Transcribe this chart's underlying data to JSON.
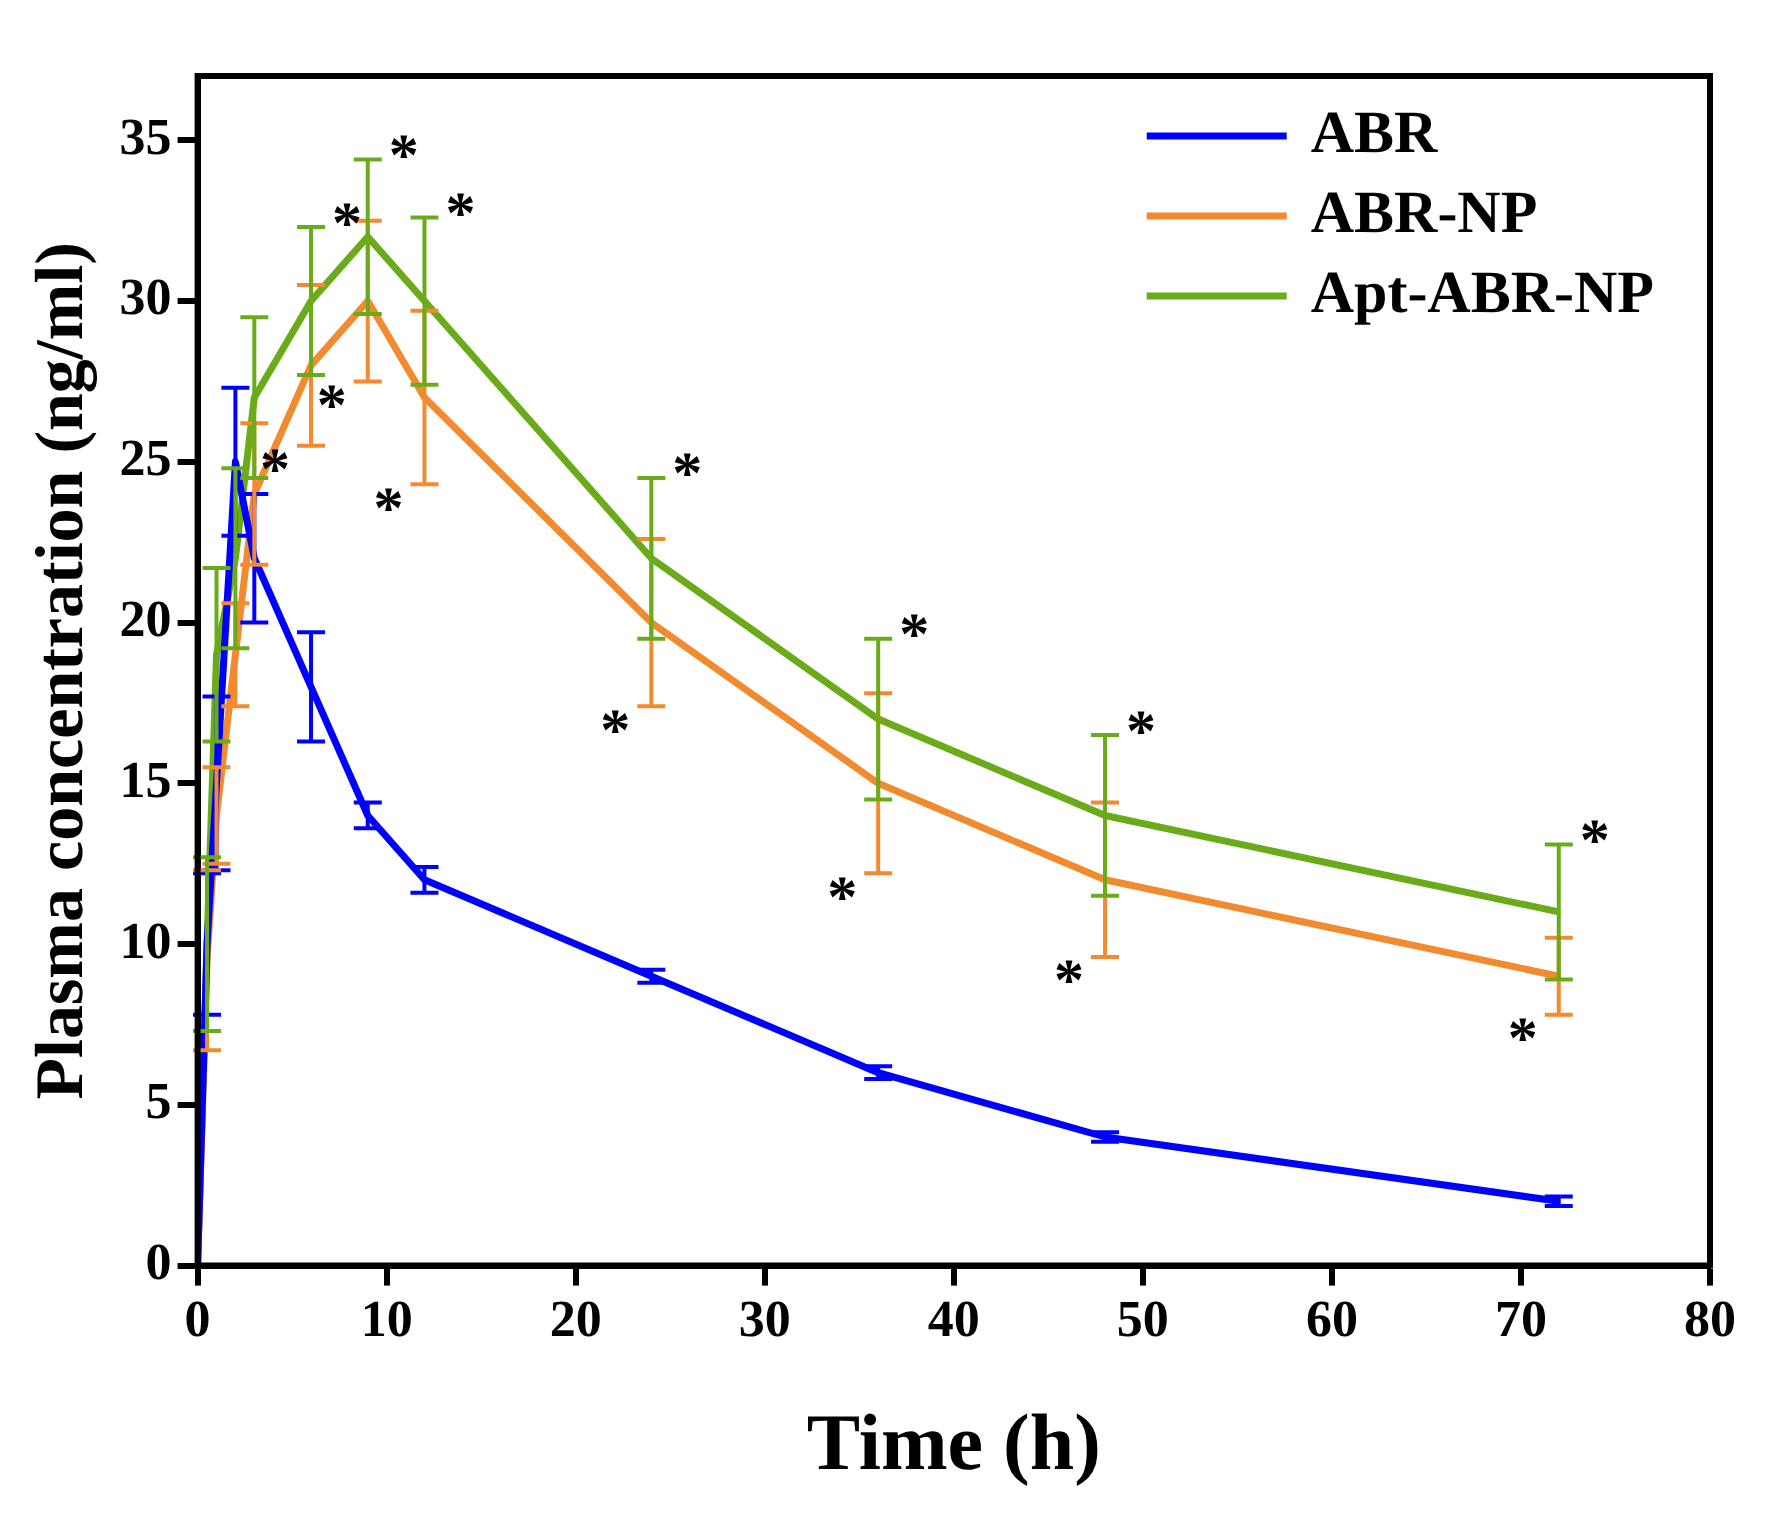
{
  "chart_data": {
    "type": "line",
    "xlabel": "Time (h)",
    "ylabel": "Plasma concentration (ng/ml)",
    "x": [
      0,
      0.5,
      1,
      2,
      3,
      6,
      9,
      12,
      24,
      36,
      48,
      72
    ],
    "series": [
      {
        "name": "ABR",
        "color": "#0000ff",
        "values": [
          0,
          10,
          15,
          25,
          22,
          18,
          14,
          12,
          9,
          6,
          4,
          2
        ],
        "errors": [
          null,
          2.2,
          2.7,
          2.3,
          2,
          1.7,
          0.4,
          0.4,
          0.2,
          0.2,
          0.15,
          0.15
        ]
      },
      {
        "name": "ABR-NP",
        "color": "#f28a30",
        "values": [
          0,
          9.5,
          14,
          19,
          24,
          28,
          30,
          27,
          20,
          15,
          12,
          9
        ],
        "errors": [
          null,
          2.8,
          1.5,
          1.6,
          2.2,
          2.5,
          2.5,
          2.7,
          2.6,
          2.8,
          2.4,
          1.2
        ]
      },
      {
        "name": "Apt-ABR-NP",
        "color": "#6aab1a",
        "values": [
          0,
          10,
          19,
          22,
          27,
          30,
          32,
          30,
          22,
          17,
          14,
          11
        ],
        "errors": [
          null,
          2.7,
          2.7,
          2.8,
          2.5,
          2.3,
          2.4,
          2.6,
          2.5,
          2.5,
          2.5,
          2.1
        ]
      }
    ],
    "annotations": [
      {
        "text": "*",
        "x": 6,
        "y": 30
      },
      {
        "text": "*",
        "x": 9,
        "y": 32
      },
      {
        "text": "*",
        "x": 12,
        "y": 30
      },
      {
        "text": "*",
        "x": 6,
        "y": 28
      },
      {
        "text": "*",
        "x": 9,
        "y": 30
      },
      {
        "text": "*",
        "x": 12,
        "y": 27
      },
      {
        "text": "*",
        "x": 24,
        "y": 22
      },
      {
        "text": "*",
        "x": 24,
        "y": 20
      },
      {
        "text": "*",
        "x": 36,
        "y": 17
      },
      {
        "text": "*",
        "x": 36,
        "y": 15
      },
      {
        "text": "*",
        "x": 48,
        "y": 14
      },
      {
        "text": "*",
        "x": 48,
        "y": 12
      },
      {
        "text": "*",
        "x": 72,
        "y": 11
      },
      {
        "text": "*",
        "x": 72,
        "y": 9
      }
    ],
    "xlim": [
      0,
      80
    ],
    "xticks": [
      0,
      10,
      20,
      30,
      40,
      50,
      60,
      70,
      80
    ],
    "ylim": [
      0,
      37
    ],
    "yticks": [
      0,
      5,
      10,
      15,
      20,
      25,
      30,
      35
    ],
    "grid": false,
    "legend": "top right",
    "marker": "none",
    "line_style": "solid"
  }
}
